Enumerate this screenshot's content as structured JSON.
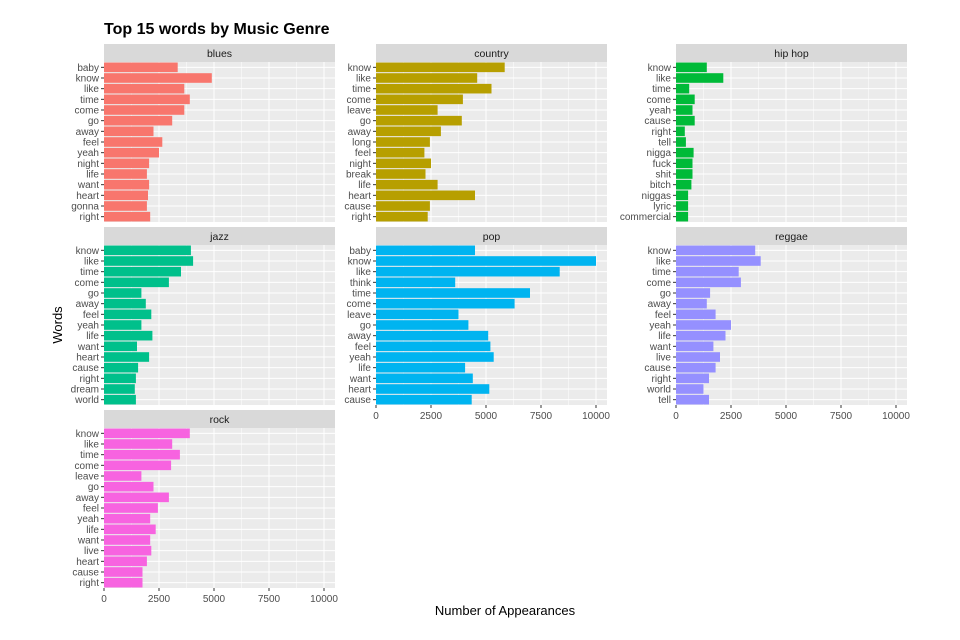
{
  "chart_data": {
    "type": "bar",
    "orientation": "horizontal",
    "title": "Top 15 words by Music Genre",
    "xlabel": "Number of Appearances",
    "ylabel": "Words",
    "xlim": [
      0,
      10500
    ],
    "xticks": [
      0,
      2500,
      5000,
      7500,
      10000
    ],
    "xtick_labels": [
      "0",
      "2500",
      "5000",
      "7500",
      "10000"
    ],
    "grid": true,
    "legend": "none",
    "facets": [
      {
        "genre": "blues",
        "color": "#F8766D",
        "words": [
          "baby",
          "know",
          "like",
          "time",
          "come",
          "go",
          "away",
          "feel",
          "yeah",
          "night",
          "life",
          "want",
          "heart",
          "gonna",
          "right"
        ],
        "values": [
          3350,
          4900,
          3650,
          3900,
          3650,
          3100,
          2250,
          2650,
          2500,
          2050,
          1950,
          2050,
          2000,
          1950,
          2100
        ]
      },
      {
        "genre": "country",
        "color": "#B79F00",
        "words": [
          "know",
          "like",
          "time",
          "come",
          "leave",
          "go",
          "away",
          "long",
          "feel",
          "night",
          "break",
          "life",
          "heart",
          "cause",
          "right"
        ],
        "values": [
          5850,
          4600,
          5250,
          3950,
          2800,
          3900,
          2950,
          2450,
          2200,
          2500,
          2250,
          2800,
          4500,
          2450,
          2350
        ]
      },
      {
        "genre": "hip hop",
        "color": "#00BA38",
        "words": [
          "know",
          "like",
          "time",
          "come",
          "yeah",
          "cause",
          "right",
          "tell",
          "nigga",
          "fuck",
          "shit",
          "bitch",
          "niggas",
          "lyric",
          "commercial"
        ],
        "values": [
          1400,
          2150,
          600,
          850,
          750,
          850,
          400,
          450,
          800,
          750,
          750,
          700,
          550,
          550,
          550
        ]
      },
      {
        "genre": "jazz",
        "color": "#00C08B",
        "words": [
          "know",
          "like",
          "time",
          "come",
          "go",
          "away",
          "feel",
          "yeah",
          "life",
          "want",
          "heart",
          "cause",
          "right",
          "dream",
          "world"
        ],
        "values": [
          3950,
          4050,
          3500,
          2950,
          1700,
          1900,
          2150,
          1700,
          2200,
          1500,
          2050,
          1550,
          1450,
          1400,
          1450
        ]
      },
      {
        "genre": "pop",
        "color": "#00B4F0",
        "words": [
          "baby",
          "know",
          "like",
          "think",
          "time",
          "come",
          "leave",
          "go",
          "away",
          "feel",
          "yeah",
          "life",
          "want",
          "heart",
          "cause"
        ],
        "values": [
          4500,
          10000,
          8350,
          3600,
          7000,
          6300,
          3750,
          4200,
          5100,
          5200,
          5350,
          4050,
          4400,
          5150,
          4350
        ]
      },
      {
        "genre": "reggae",
        "color": "#9590FF",
        "words": [
          "know",
          "like",
          "time",
          "come",
          "go",
          "away",
          "feel",
          "yeah",
          "life",
          "want",
          "live",
          "cause",
          "right",
          "world",
          "tell"
        ],
        "values": [
          3600,
          3850,
          2850,
          2950,
          1550,
          1400,
          1800,
          2500,
          2250,
          1700,
          2000,
          1800,
          1500,
          1250,
          1500
        ]
      },
      {
        "genre": "rock",
        "color": "#F763E0",
        "words": [
          "know",
          "like",
          "time",
          "come",
          "leave",
          "go",
          "away",
          "feel",
          "yeah",
          "life",
          "want",
          "live",
          "heart",
          "cause",
          "right"
        ],
        "values": [
          3900,
          3100,
          3450,
          3050,
          1700,
          2250,
          2950,
          2450,
          2100,
          2350,
          2100,
          2150,
          1950,
          1750,
          1750
        ]
      }
    ]
  }
}
